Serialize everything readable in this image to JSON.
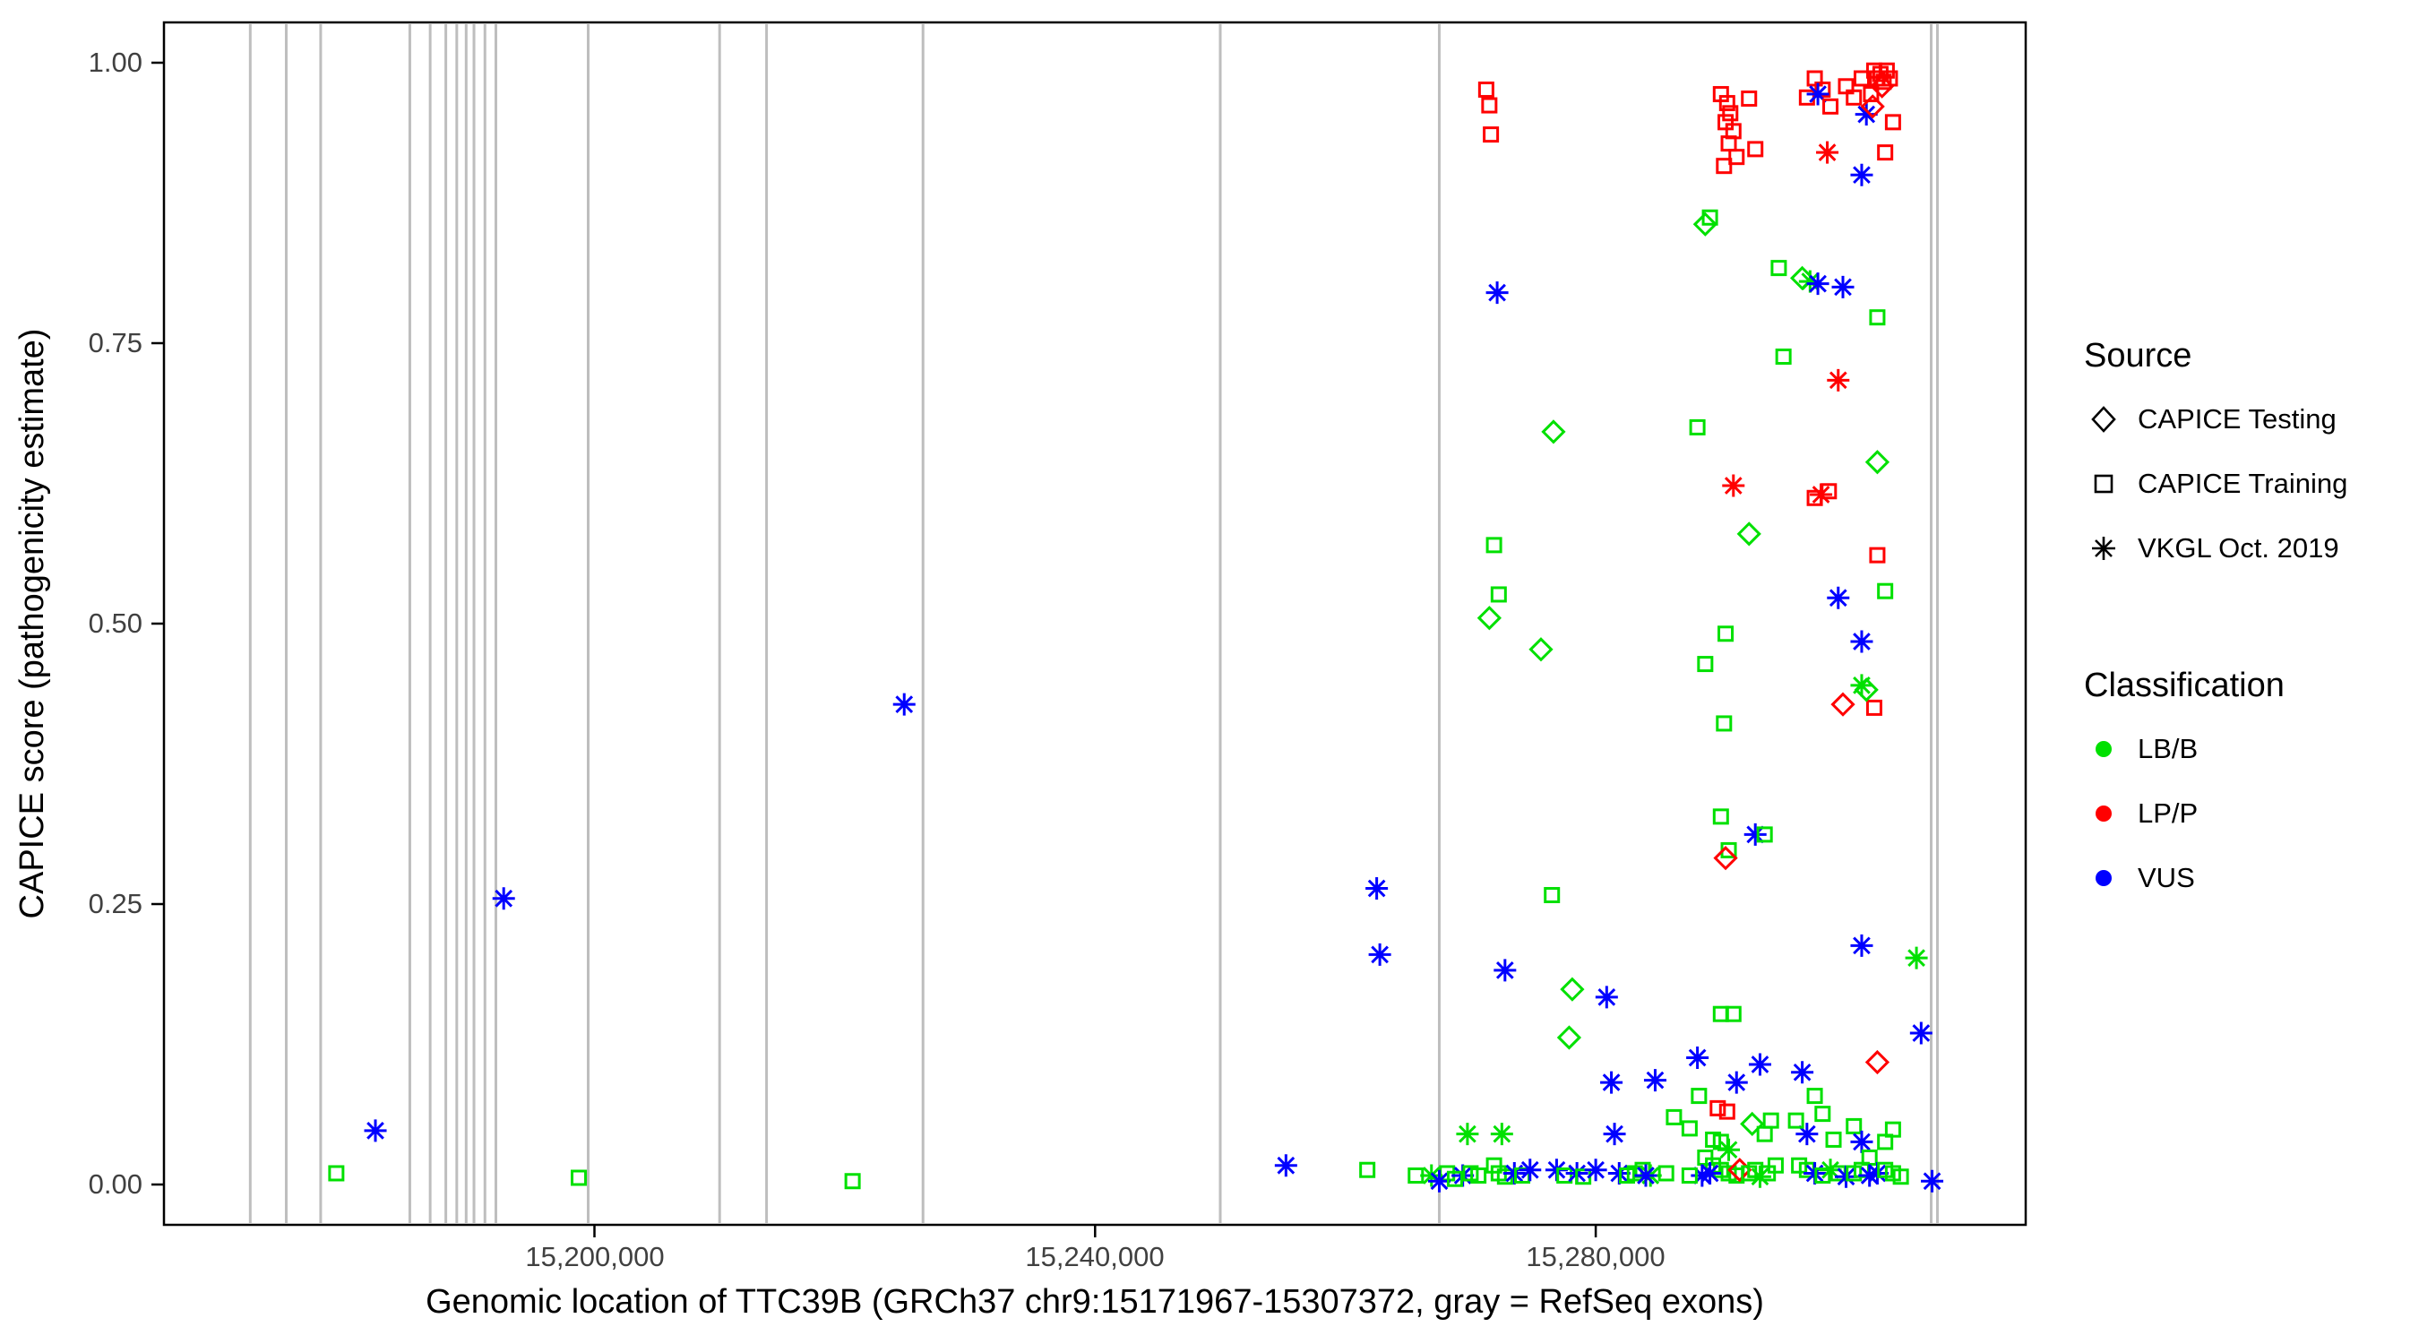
{
  "figure": {
    "y_axis": {
      "title": "CAPICE score (pathogenicity estimate)",
      "tick_labels": [
        "1.00",
        "0.75",
        "0.50",
        "0.25",
        "0.00"
      ]
    },
    "x_axis": {
      "title": "Genomic location of TTC39B (GRCh37 chr9:15171967-15307372, gray = RefSeq exons)",
      "tick_labels": [
        "15,200,000",
        "15,240,000",
        "15,280,000"
      ]
    },
    "legend": {
      "source": {
        "title": "Source",
        "items": [
          {
            "label": "CAPICE Testing",
            "shape": "diamond"
          },
          {
            "label": "CAPICE Training",
            "shape": "square"
          },
          {
            "label": "VKGL Oct. 2019",
            "shape": "asterisk"
          }
        ]
      },
      "classification": {
        "title": "Classification",
        "items": [
          {
            "label": "LB/B",
            "color": "#00E000"
          },
          {
            "label": "LP/P",
            "color": "#FF0000"
          },
          {
            "label": "VUS",
            "color": "#0000FF"
          }
        ]
      }
    }
  },
  "chart_data": {
    "type": "scatter",
    "title": "",
    "xlabel": "Genomic location of TTC39B (GRCh37 chr9:15171967-15307372, gray = RefSeq exons)",
    "ylabel": "CAPICE score (pathogenicity estimate)",
    "xlim": [
      15165605,
      15314352
    ],
    "ylim": [
      -0.036,
      1.036
    ],
    "x_ticks": [
      15200000,
      15240000,
      15280000
    ],
    "y_ticks": [
      0.0,
      0.25,
      0.5,
      0.75,
      1.0
    ],
    "grid": false,
    "legend_position": "right",
    "exon_color": "#BEBEBE",
    "border_color": "#000000",
    "colors": {
      "LB/B": "#00E000",
      "LP/P": "#FF0000",
      "VUS": "#0000FF"
    },
    "shapes": {
      "testing": "diamond",
      "training": "square",
      "vkgl": "asterisk"
    },
    "exons": [
      15172500,
      15175375,
      15178125,
      15185250,
      15186875,
      15188125,
      15189000,
      15189750,
      15190375,
      15191250,
      15192125,
      15199500,
      15210000,
      15213750,
      15226250,
      15250000,
      15267500,
      15306800,
      15307300
    ],
    "points": [
      [
        15179375,
        0.01,
        "LB/B",
        "training"
      ],
      [
        15182500,
        0.048,
        "VUS",
        "vkgl"
      ],
      [
        15192750,
        0.255,
        "VUS",
        "vkgl"
      ],
      [
        15198750,
        0.006,
        "LB/B",
        "training"
      ],
      [
        15220625,
        0.003,
        "LB/B",
        "training"
      ],
      [
        15224750,
        0.428,
        "VUS",
        "vkgl"
      ],
      [
        15255250,
        0.017,
        "VUS",
        "vkgl"
      ],
      [
        15261750,
        0.013,
        "LB/B",
        "training"
      ],
      [
        15262500,
        0.264,
        "VUS",
        "vkgl"
      ],
      [
        15262750,
        0.205,
        "VUS",
        "vkgl"
      ],
      [
        15265625,
        0.008,
        "LB/B",
        "training"
      ],
      [
        15266875,
        0.008,
        "LB/B",
        "vkgl"
      ],
      [
        15268125,
        0.01,
        "LB/B",
        "training"
      ],
      [
        15269375,
        0.008,
        "VUS",
        "vkgl"
      ],
      [
        15271250,
        0.976,
        "LP/P",
        "training"
      ],
      [
        15271500,
        0.962,
        "LP/P",
        "training"
      ],
      [
        15271625,
        0.936,
        "LP/P",
        "training"
      ],
      [
        15272125,
        0.795,
        "VUS",
        "vkgl"
      ],
      [
        15271875,
        0.57,
        "LB/B",
        "training"
      ],
      [
        15272250,
        0.526,
        "LB/B",
        "training"
      ],
      [
        15271500,
        0.505,
        "LB/B",
        "testing"
      ],
      [
        15272750,
        0.191,
        "VUS",
        "vkgl"
      ],
      [
        15272500,
        0.045,
        "LB/B",
        "vkgl"
      ],
      [
        15271875,
        0.017,
        "LB/B",
        "training"
      ],
      [
        15272250,
        0.01,
        "LB/B",
        "training"
      ],
      [
        15272750,
        0.007,
        "LB/B",
        "training"
      ],
      [
        15273500,
        0.01,
        "VUS",
        "vkgl"
      ],
      [
        15274125,
        0.008,
        "LB/B",
        "training"
      ],
      [
        15275625,
        0.477,
        "LB/B",
        "testing"
      ],
      [
        15276625,
        0.671,
        "LB/B",
        "testing"
      ],
      [
        15276500,
        0.258,
        "LB/B",
        "training"
      ],
      [
        15278125,
        0.174,
        "LB/B",
        "testing"
      ],
      [
        15277875,
        0.131,
        "LB/B",
        "testing"
      ],
      [
        15276875,
        0.013,
        "VUS",
        "vkgl"
      ],
      [
        15277500,
        0.008,
        "LB/B",
        "training"
      ],
      [
        15278500,
        0.01,
        "VUS",
        "vkgl"
      ],
      [
        15279000,
        0.007,
        "LB/B",
        "training"
      ],
      [
        15280875,
        0.167,
        "VUS",
        "vkgl"
      ],
      [
        15281250,
        0.091,
        "VUS",
        "vkgl"
      ],
      [
        15281500,
        0.045,
        "VUS",
        "vkgl"
      ],
      [
        15281875,
        0.01,
        "VUS",
        "vkgl"
      ],
      [
        15282500,
        0.008,
        "LB/B",
        "training"
      ],
      [
        15283125,
        0.01,
        "LB/B",
        "training"
      ],
      [
        15283750,
        0.013,
        "LB/B",
        "training"
      ],
      [
        15284750,
        0.093,
        "VUS",
        "vkgl"
      ],
      [
        15284375,
        0.008,
        "LB/B",
        "vkgl"
      ],
      [
        15290000,
        0.972,
        "LP/P",
        "training"
      ],
      [
        15290500,
        0.964,
        "LP/P",
        "training"
      ],
      [
        15290750,
        0.955,
        "LP/P",
        "training"
      ],
      [
        15290375,
        0.947,
        "LP/P",
        "training"
      ],
      [
        15291000,
        0.939,
        "LP/P",
        "training"
      ],
      [
        15290625,
        0.928,
        "LP/P",
        "training"
      ],
      [
        15291250,
        0.916,
        "LP/P",
        "training"
      ],
      [
        15290250,
        0.908,
        "LP/P",
        "training"
      ],
      [
        15292250,
        0.968,
        "LP/P",
        "training"
      ],
      [
        15292750,
        0.923,
        "LP/P",
        "training"
      ],
      [
        15291000,
        0.623,
        "LP/P",
        "vkgl"
      ],
      [
        15288750,
        0.856,
        "LB/B",
        "testing"
      ],
      [
        15289125,
        0.862,
        "LB/B",
        "training"
      ],
      [
        15288125,
        0.675,
        "LB/B",
        "training"
      ],
      [
        15294625,
        0.817,
        "LB/B",
        "training"
      ],
      [
        15292250,
        0.58,
        "LB/B",
        "testing"
      ],
      [
        15290375,
        0.491,
        "LB/B",
        "training"
      ],
      [
        15288750,
        0.464,
        "LB/B",
        "training"
      ],
      [
        15290250,
        0.411,
        "LB/B",
        "training"
      ],
      [
        15290000,
        0.328,
        "LB/B",
        "training"
      ],
      [
        15290625,
        0.298,
        "LB/B",
        "training"
      ],
      [
        15290375,
        0.291,
        "LP/P",
        "testing"
      ],
      [
        15292750,
        0.312,
        "VUS",
        "vkgl"
      ],
      [
        15293500,
        0.312,
        "LB/B",
        "training"
      ],
      [
        15288125,
        0.113,
        "VUS",
        "vkgl"
      ],
      [
        15290000,
        0.152,
        "LB/B",
        "training"
      ],
      [
        15291000,
        0.152,
        "LB/B",
        "training"
      ],
      [
        15288250,
        0.079,
        "LB/B",
        "training"
      ],
      [
        15289750,
        0.068,
        "LP/P",
        "training"
      ],
      [
        15290500,
        0.065,
        "LP/P",
        "training"
      ],
      [
        15289375,
        0.04,
        "LB/B",
        "training"
      ],
      [
        15290000,
        0.038,
        "LB/B",
        "training"
      ],
      [
        15290625,
        0.031,
        "LB/B",
        "vkgl"
      ],
      [
        15288750,
        0.024,
        "LB/B",
        "training"
      ],
      [
        15289375,
        0.017,
        "LB/B",
        "training"
      ],
      [
        15290000,
        0.013,
        "LB/B",
        "training"
      ],
      [
        15290625,
        0.01,
        "LB/B",
        "training"
      ],
      [
        15291250,
        0.008,
        "LB/B",
        "training"
      ],
      [
        15291500,
        0.013,
        "LP/P",
        "testing"
      ],
      [
        15288500,
        0.008,
        "VUS",
        "vkgl"
      ],
      [
        15289125,
        0.01,
        "VUS",
        "vkgl"
      ],
      [
        15292250,
        0.01,
        "LB/B",
        "training"
      ],
      [
        15292750,
        0.013,
        "LB/B",
        "training"
      ],
      [
        15293125,
        0.007,
        "LB/B",
        "vkgl"
      ],
      [
        15293750,
        0.01,
        "LB/B",
        "training"
      ],
      [
        15294375,
        0.017,
        "LB/B",
        "training"
      ],
      [
        15292500,
        0.054,
        "LB/B",
        "testing"
      ],
      [
        15293500,
        0.045,
        "LB/B",
        "training"
      ],
      [
        15294000,
        0.057,
        "LB/B",
        "training"
      ],
      [
        15291250,
        0.091,
        "VUS",
        "vkgl"
      ],
      [
        15293125,
        0.107,
        "VUS",
        "vkgl"
      ],
      [
        15297500,
        0.986,
        "LP/P",
        "training"
      ],
      [
        15298125,
        0.976,
        "LP/P",
        "training"
      ],
      [
        15296875,
        0.969,
        "LP/P",
        "training"
      ],
      [
        15297750,
        0.972,
        "VUS",
        "vkgl"
      ],
      [
        15298750,
        0.961,
        "LP/P",
        "training"
      ],
      [
        15298500,
        0.92,
        "LP/P",
        "vkgl"
      ],
      [
        15300000,
        0.979,
        "LP/P",
        "training"
      ],
      [
        15300625,
        0.969,
        "LP/P",
        "training"
      ],
      [
        15301250,
        0.986,
        "LP/P",
        "training"
      ],
      [
        15301625,
        0.954,
        "VUS",
        "vkgl"
      ],
      [
        15302000,
        0.972,
        "LP/P",
        "training"
      ],
      [
        15302250,
        0.993,
        "LP/P",
        "training"
      ],
      [
        15302500,
        0.986,
        "LP/P",
        "training"
      ],
      [
        15302750,
        0.99,
        "LP/P",
        "training"
      ],
      [
        15303000,
        0.983,
        "LP/P",
        "training"
      ],
      [
        15303250,
        0.993,
        "LP/P",
        "training"
      ],
      [
        15303500,
        0.986,
        "LP/P",
        "training"
      ],
      [
        15302875,
        0.979,
        "LP/P",
        "testing"
      ],
      [
        15302125,
        0.961,
        "LP/P",
        "testing"
      ],
      [
        15301250,
        0.9,
        "VUS",
        "vkgl"
      ],
      [
        15303125,
        0.92,
        "LP/P",
        "training"
      ],
      [
        15303750,
        0.947,
        "LP/P",
        "training"
      ],
      [
        15296500,
        0.808,
        "LB/B",
        "testing"
      ],
      [
        15297125,
        0.805,
        "LB/B",
        "vkgl"
      ],
      [
        15297750,
        0.803,
        "VUS",
        "vkgl"
      ],
      [
        15299750,
        0.8,
        "VUS",
        "vkgl"
      ],
      [
        15295000,
        0.738,
        "LB/B",
        "training"
      ],
      [
        15302500,
        0.773,
        "LB/B",
        "training"
      ],
      [
        15299375,
        0.717,
        "LP/P",
        "vkgl"
      ],
      [
        15302500,
        0.644,
        "LB/B",
        "testing"
      ],
      [
        15297500,
        0.612,
        "LP/P",
        "training"
      ],
      [
        15298625,
        0.618,
        "LP/P",
        "training"
      ],
      [
        15302500,
        0.561,
        "LP/P",
        "training"
      ],
      [
        15303125,
        0.529,
        "LB/B",
        "training"
      ],
      [
        15299375,
        0.523,
        "VUS",
        "vkgl"
      ],
      [
        15301250,
        0.484,
        "VUS",
        "vkgl"
      ],
      [
        15301250,
        0.445,
        "LB/B",
        "vkgl"
      ],
      [
        15299750,
        0.428,
        "LP/P",
        "testing"
      ],
      [
        15302250,
        0.425,
        "LP/P",
        "training"
      ],
      [
        15301250,
        0.213,
        "VUS",
        "vkgl"
      ],
      [
        15305625,
        0.202,
        "LB/B",
        "vkgl"
      ],
      [
        15306000,
        0.135,
        "VUS",
        "vkgl"
      ],
      [
        15302500,
        0.109,
        "LP/P",
        "testing"
      ],
      [
        15297500,
        0.079,
        "LB/B",
        "training"
      ],
      [
        15298125,
        0.063,
        "LB/B",
        "training"
      ],
      [
        15296875,
        0.045,
        "VUS",
        "vkgl"
      ],
      [
        15299000,
        0.04,
        "LB/B",
        "training"
      ],
      [
        15300625,
        0.052,
        "LB/B",
        "training"
      ],
      [
        15301250,
        0.038,
        "VUS",
        "vkgl"
      ],
      [
        15301875,
        0.024,
        "LB/B",
        "training"
      ],
      [
        15296250,
        0.017,
        "LB/B",
        "training"
      ],
      [
        15296875,
        0.013,
        "LB/B",
        "training"
      ],
      [
        15297500,
        0.01,
        "VUS",
        "vkgl"
      ],
      [
        15298125,
        0.008,
        "LB/B",
        "training"
      ],
      [
        15298750,
        0.013,
        "LB/B",
        "vkgl"
      ],
      [
        15299375,
        0.01,
        "LB/B",
        "training"
      ],
      [
        15300000,
        0.007,
        "VUS",
        "vkgl"
      ],
      [
        15300625,
        0.01,
        "LB/B",
        "training"
      ],
      [
        15301250,
        0.013,
        "LB/B",
        "training"
      ],
      [
        15301875,
        0.008,
        "VUS",
        "vkgl"
      ],
      [
        15302500,
        0.01,
        "VUS",
        "vkgl"
      ],
      [
        15303125,
        0.013,
        "LB/B",
        "training"
      ],
      [
        15303750,
        0.01,
        "LB/B",
        "training"
      ],
      [
        15304375,
        0.007,
        "LB/B",
        "training"
      ],
      [
        15303125,
        0.038,
        "LB/B",
        "training"
      ],
      [
        15303750,
        0.049,
        "LB/B",
        "training"
      ],
      [
        15296000,
        0.057,
        "LB/B",
        "training"
      ],
      [
        15306875,
        0.003,
        "VUS",
        "vkgl"
      ],
      [
        15296500,
        0.1,
        "VUS",
        "vkgl"
      ],
      [
        15298000,
        0.615,
        "LP/P",
        "vkgl"
      ],
      [
        15301625,
        0.441,
        "LB/B",
        "testing"
      ],
      [
        15280000,
        0.013,
        "VUS",
        "vkgl"
      ],
      [
        15274750,
        0.013,
        "VUS",
        "vkgl"
      ],
      [
        15270000,
        0.01,
        "LB/B",
        "training"
      ],
      [
        15270625,
        0.008,
        "LB/B",
        "training"
      ],
      [
        15269750,
        0.045,
        "LB/B",
        "vkgl"
      ],
      [
        15267500,
        0.003,
        "VUS",
        "vkgl"
      ],
      [
        15268750,
        0.005,
        "LB/B",
        "training"
      ],
      [
        15284000,
        0.008,
        "VUS",
        "vkgl"
      ],
      [
        15285625,
        0.01,
        "LB/B",
        "training"
      ],
      [
        15286250,
        0.06,
        "LB/B",
        "training"
      ],
      [
        15287500,
        0.05,
        "LB/B",
        "training"
      ],
      [
        15287500,
        0.008,
        "LB/B",
        "training"
      ]
    ]
  }
}
